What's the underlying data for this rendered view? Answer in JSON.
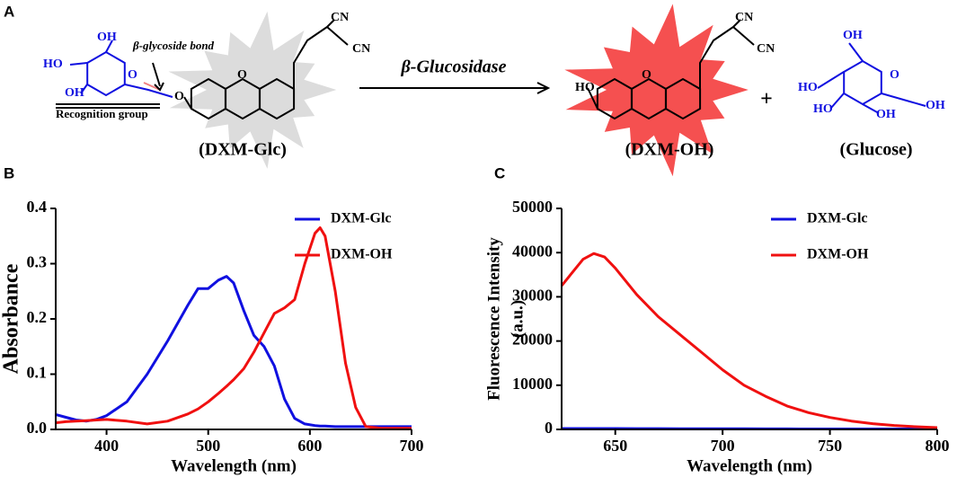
{
  "scheme": {
    "label": "A",
    "reactant": {
      "name": "(DXM-Glc)",
      "bond": "β-glycoside bond",
      "group": "Recognition group",
      "atoms": [
        "OH",
        "HO",
        "O",
        "OH",
        "O",
        "O",
        "CN",
        "CN"
      ]
    },
    "enzyme": "β-Glucosidase",
    "product": {
      "name": "(DXM-OH)",
      "atoms": [
        "HO",
        "O",
        "CN",
        "CN"
      ]
    },
    "plus": "+",
    "byproduct": {
      "name": "(Glucose)",
      "atoms": [
        "OH",
        "HO",
        "O",
        "HO",
        "OH",
        "OH"
      ]
    }
  },
  "chart_data": [
    {
      "type": "line",
      "panel": "B",
      "xlabel": "Wavelength (nm)",
      "ylabel": "Absorbance",
      "x": [
        350,
        360,
        370,
        380,
        390,
        400,
        420,
        440,
        460,
        480,
        490,
        500,
        510,
        518,
        525,
        535,
        545,
        555,
        565,
        575,
        585,
        595,
        605,
        610,
        615,
        625,
        635,
        645,
        655,
        670,
        700
      ],
      "series": [
        {
          "name": "DXM-Glc",
          "color": "#1010e0",
          "values": [
            0.027,
            0.022,
            0.017,
            0.015,
            0.018,
            0.025,
            0.05,
            0.1,
            0.16,
            0.225,
            0.255,
            0.255,
            0.27,
            0.277,
            0.265,
            0.215,
            0.17,
            0.15,
            0.115,
            0.055,
            0.02,
            0.01,
            0.007,
            0.006,
            0.006,
            0.005,
            0.005,
            0.005,
            0.005,
            0.005,
            0.005
          ]
        },
        {
          "name": "DXM-OH",
          "color": "#f01010",
          "values": [
            0.012,
            0.014,
            0.015,
            0.016,
            0.017,
            0.018,
            0.015,
            0.01,
            0.015,
            0.028,
            0.037,
            0.05,
            0.065,
            0.078,
            0.09,
            0.11,
            0.14,
            0.175,
            0.21,
            0.22,
            0.235,
            0.3,
            0.355,
            0.365,
            0.35,
            0.25,
            0.12,
            0.04,
            0.005,
            0.002,
            0.002
          ]
        }
      ],
      "xlim": [
        350,
        700
      ],
      "xticks": [
        400,
        500,
        600,
        700
      ],
      "ylim": [
        0,
        0.4
      ],
      "yticks": [
        {
          "value": 0,
          "label": "0.0"
        },
        0.1,
        0.2,
        0.3,
        0.4
      ],
      "grid": false,
      "legend": "upper right"
    },
    {
      "type": "line",
      "panel": "C",
      "xlabel": "Wavelength (nm)",
      "ylabel": [
        "Fluorescence Intensity",
        "(a.u.)"
      ],
      "x": [
        625,
        630,
        635,
        640,
        645,
        650,
        660,
        670,
        680,
        690,
        700,
        710,
        720,
        730,
        740,
        750,
        760,
        770,
        780,
        790,
        800
      ],
      "series": [
        {
          "name": "DXM-Glc",
          "color": "#1010e0",
          "values": [
            200,
            200,
            200,
            200,
            200,
            200,
            190,
            180,
            170,
            160,
            150,
            140,
            130,
            120,
            110,
            100,
            100,
            100,
            100,
            100,
            100
          ]
        },
        {
          "name": "DXM-OH",
          "color": "#f01010",
          "values": [
            32500,
            35500,
            38500,
            39800,
            39000,
            36500,
            30500,
            25500,
            21500,
            17500,
            13500,
            10000,
            7500,
            5300,
            3800,
            2700,
            1900,
            1300,
            900,
            600,
            400
          ]
        }
      ],
      "xlim": [
        625,
        800
      ],
      "xticks": [
        650,
        700,
        750,
        800
      ],
      "ylim": [
        0,
        50000
      ],
      "yticks": [
        0,
        10000,
        20000,
        30000,
        40000,
        50000
      ],
      "grid": false,
      "legend": "upper right"
    }
  ]
}
